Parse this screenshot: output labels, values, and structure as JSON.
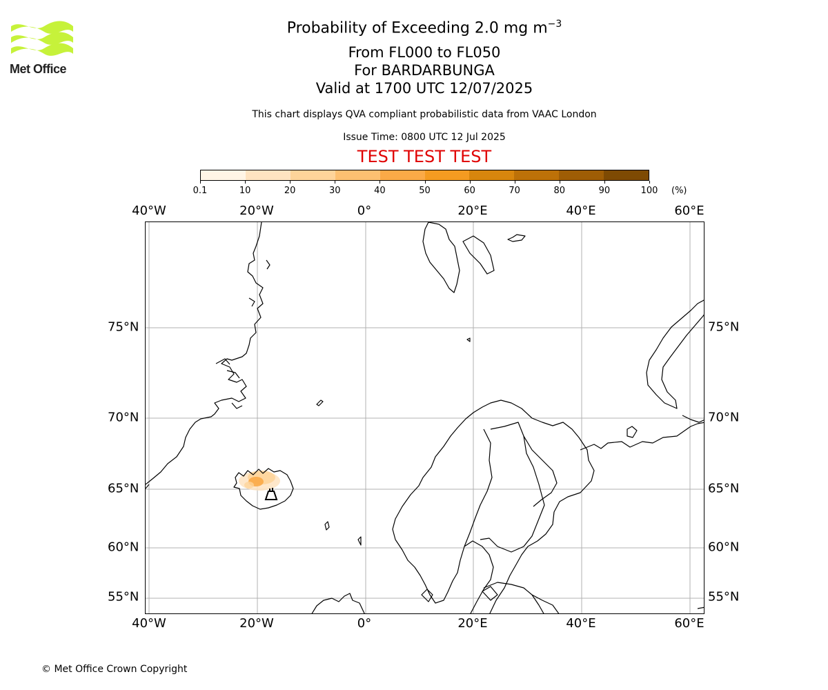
{
  "logo": {
    "text": "Met Office",
    "color": "#c6f23a"
  },
  "title": {
    "main": "Probability of Exceeding 2.0 mg m",
    "main_sup": "−3",
    "flight_levels": "From FL000 to FL050",
    "volcano": "For BARDARBUNGA",
    "valid": "Valid at 1700 UTC 12/07/2025",
    "note": "This chart displays QVA compliant probabilistic data from VAAC London",
    "issue": "Issue Time: 0800 UTC 12 Jul 2025",
    "test": "TEST TEST TEST"
  },
  "colorbar": {
    "ticks": [
      "0.1",
      "10",
      "20",
      "30",
      "40",
      "50",
      "60",
      "70",
      "80",
      "90",
      "100"
    ],
    "unit": "(%)",
    "colors": [
      "#fff5e6",
      "#fee3c1",
      "#fed49a",
      "#fdc071",
      "#fbaa47",
      "#f49b21",
      "#d8860d",
      "#bd7108",
      "#9f5d05",
      "#7e4a03",
      "#5f3702"
    ]
  },
  "map": {
    "lon_labels": [
      "40°W",
      "20°W",
      "0°",
      "20°E",
      "40°E",
      "60°E"
    ],
    "lat_labels": [
      "75°N",
      "70°N",
      "65°N",
      "60°N",
      "55°N"
    ],
    "volcano_marker": "volcano-icon",
    "grid": true,
    "colors": {
      "grid": "#b0b0b0",
      "coast": "#000000"
    }
  },
  "footer": {
    "copyright": "© Met Office Crown Copyright"
  }
}
